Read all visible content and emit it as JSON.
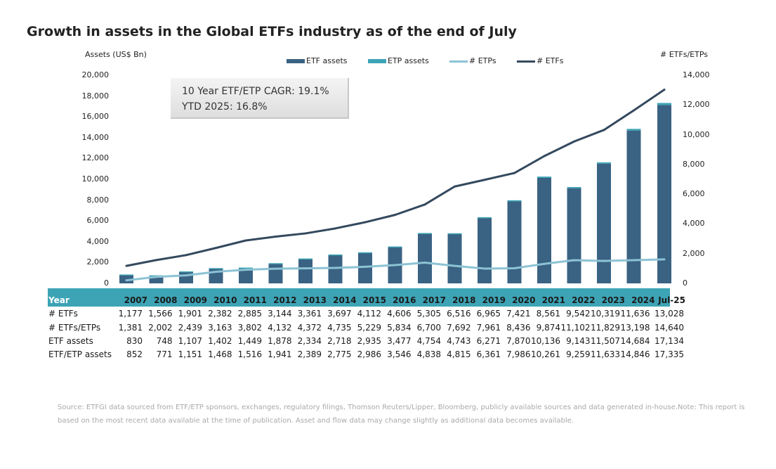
{
  "title": "Growth in assets in the Global ETFs industry as of the end of July",
  "axis_left_title": "Assets (US$ Bn)",
  "axis_right_title": "# ETFs/ETPs",
  "cagr": {
    "line1": "10 Year ETF/ETP CAGR: 19.1%",
    "line2": "YTD 2025: 16.8%"
  },
  "table": {
    "header_label": "Year",
    "row_labels": [
      "# ETFs",
      "# ETFs/ETPs",
      "ETF assets",
      "ETF/ETP assets"
    ],
    "rows": [
      [
        "1,177",
        "1,566",
        "1,901",
        "2,382",
        "2,885",
        "3,144",
        "3,361",
        "3,697",
        "4,112",
        "4,606",
        "5,305",
        "6,516",
        "6,965",
        "7,421",
        "8,561",
        "9,542",
        "10,319",
        "11,636",
        "13,028"
      ],
      [
        "1,381",
        "2,002",
        "2,439",
        "3,163",
        "3,802",
        "4,132",
        "4,372",
        "4,735",
        "5,229",
        "5,834",
        "6,700",
        "7,692",
        "7,961",
        "8,436",
        "9,874",
        "11,102",
        "11,829",
        "13,198",
        "14,640"
      ],
      [
        "830",
        "748",
        "1,107",
        "1,402",
        "1,449",
        "1,878",
        "2,334",
        "2,718",
        "2,935",
        "3,477",
        "4,754",
        "4,743",
        "6,271",
        "7,870",
        "10,136",
        "9,143",
        "11,507",
        "14,684",
        "17,134"
      ],
      [
        "852",
        "771",
        "1,151",
        "1,468",
        "1,516",
        "1,941",
        "2,389",
        "2,775",
        "2,986",
        "3,546",
        "4,838",
        "4,815",
        "6,361",
        "7,986",
        "10,261",
        "9,259",
        "11,633",
        "14,846",
        "17,335"
      ]
    ]
  },
  "source": "Source: ETFGI data sourced from ETF/ETP sponsors, exchanges, regulatory filings, Thomson Reuters/Lipper, Bloomberg, publicly available sources and data generated in-house.Note: This report is based on the most recent data available at the time of publication. Asset and flow data may change slightly as additional data becomes available.",
  "colors": {
    "etf_assets": "#3a6283",
    "etp_assets": "#3da4b6",
    "etps_line": "#8cc3d4",
    "etfs_line": "#34495e",
    "table_header": "#3da4b6"
  },
  "chart_data": {
    "type": "bar",
    "title": "Growth in assets in the Global ETFs industry as of the end of July",
    "categories": [
      "2007",
      "2008",
      "2009",
      "2010",
      "2011",
      "2012",
      "2013",
      "2014",
      "2015",
      "2016",
      "2017",
      "2018",
      "2019",
      "2020",
      "2021",
      "2022",
      "2023",
      "2024",
      "Jul-25"
    ],
    "ylabel": "Assets (US$ Bn)",
    "y2label": "# ETFs/ETPs",
    "ylim": [
      0,
      20000
    ],
    "y2lim": [
      0,
      14000
    ],
    "yticks": [
      "0",
      "2,000",
      "4,000",
      "6,000",
      "8,000",
      "10,000",
      "12,000",
      "14,000",
      "16,000",
      "18,000",
      "20,000"
    ],
    "y2ticks": [
      "0",
      "2,000",
      "4,000",
      "6,000",
      "8,000",
      "10,000",
      "12,000",
      "14,000"
    ],
    "legend_position": "top",
    "series": [
      {
        "name": "ETF assets",
        "kind": "bar",
        "axis": "left",
        "values": [
          830,
          748,
          1107,
          1402,
          1449,
          1878,
          2334,
          2718,
          2935,
          3477,
          4754,
          4743,
          6271,
          7870,
          10136,
          9143,
          11507,
          14684,
          17134
        ]
      },
      {
        "name": "ETP assets",
        "kind": "bar-stack",
        "axis": "left",
        "values": [
          22,
          23,
          44,
          66,
          67,
          63,
          55,
          57,
          51,
          69,
          84,
          72,
          90,
          116,
          125,
          116,
          126,
          162,
          201
        ]
      },
      {
        "name": "# ETPs",
        "kind": "line",
        "axis": "right",
        "values": [
          204,
          436,
          538,
          781,
          917,
          988,
          1011,
          1038,
          1117,
          1228,
          1395,
          1176,
          996,
          1015,
          1313,
          1560,
          1510,
          1562,
          1612
        ]
      },
      {
        "name": "# ETFs",
        "kind": "line",
        "axis": "right",
        "values": [
          1177,
          1566,
          1901,
          2382,
          2885,
          3144,
          3361,
          3697,
          4112,
          4606,
          5305,
          6516,
          6965,
          7421,
          8561,
          9542,
          10319,
          11636,
          13028
        ]
      }
    ]
  }
}
